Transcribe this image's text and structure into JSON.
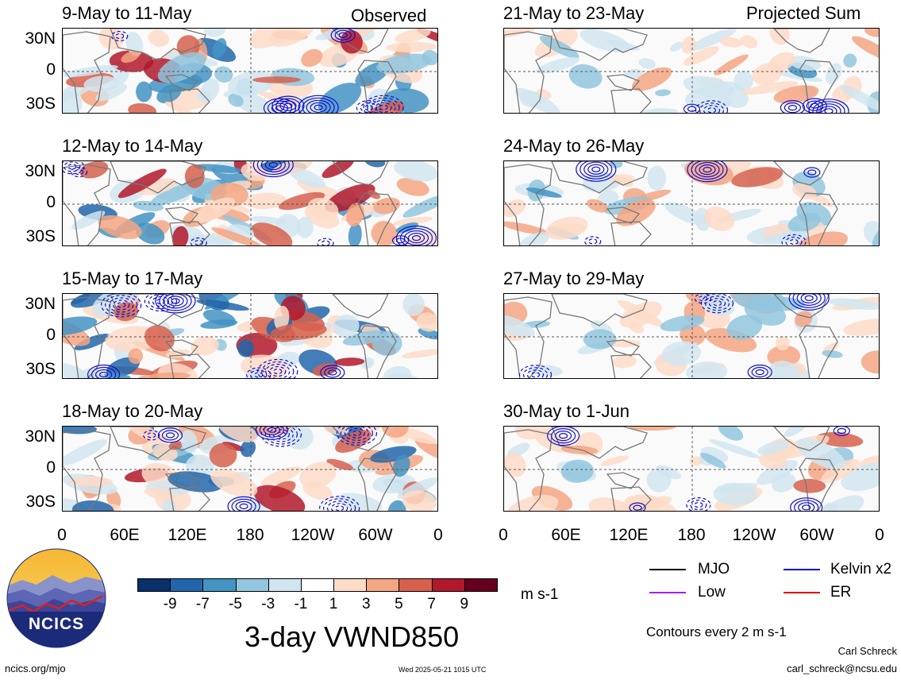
{
  "figure": {
    "left_label": "Observed",
    "right_label": "Projected Sum",
    "main_title": "3-day VWND850",
    "contour_note": "Contours every 2 m s-1",
    "footer_left": "ncics.org/mjo",
    "footer_center": "Wed 2025-05-21 1015 UTC",
    "author_name": "Carl Schreck",
    "author_email": "carl_schreck@ncsu.edu",
    "logo_text": "NCICS"
  },
  "panels_left": [
    {
      "title": "9-May to 11-May"
    },
    {
      "title": "12-May to 14-May"
    },
    {
      "title": "15-May to 17-May"
    },
    {
      "title": "18-May to 20-May"
    }
  ],
  "panels_right": [
    {
      "title": "21-May to 23-May"
    },
    {
      "title": "24-May to 26-May"
    },
    {
      "title": "27-May to 29-May"
    },
    {
      "title": "30-May to 1-Jun"
    }
  ],
  "lat_labels": [
    "30N",
    "0",
    "30S"
  ],
  "lon_labels": [
    "0",
    "60E",
    "120E",
    "180",
    "120W",
    "60W",
    "0"
  ],
  "colorbar": {
    "unit": "m s-1",
    "labels": [
      "-9",
      "-7",
      "-5",
      "-3",
      "-1",
      "1",
      "3",
      "5",
      "7",
      "9"
    ],
    "colors": [
      "#08306b",
      "#2166ac",
      "#4393c3",
      "#92c5de",
      "#d1e5f0",
      "#ffffff",
      "#fddbc7",
      "#f4a582",
      "#d6604d",
      "#b2182b",
      "#67001f"
    ]
  },
  "legend": [
    {
      "label": "MJO",
      "color": "#000000"
    },
    {
      "label": "Kelvin x2",
      "color": "#0000dd"
    },
    {
      "label": "Low",
      "color": "#a020f0"
    },
    {
      "label": "ER",
      "color": "#e00000"
    }
  ]
}
